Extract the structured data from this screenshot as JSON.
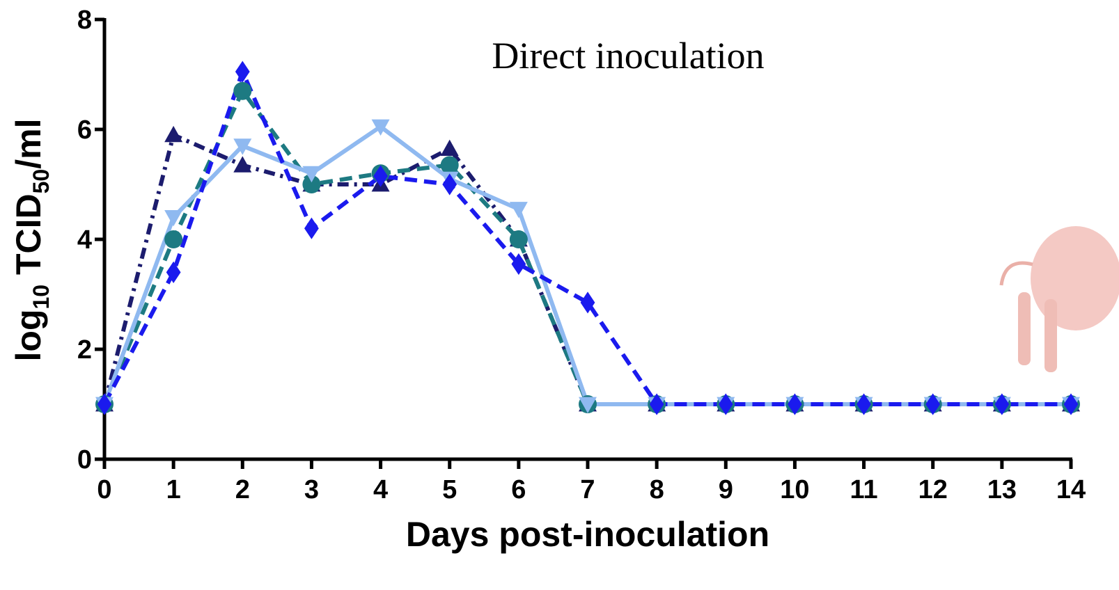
{
  "chart_data": {
    "type": "line",
    "title": "Direct inoculation",
    "x_label": "Days post-inoculation",
    "y_label": [
      "log",
      "10",
      " TCID",
      "50",
      "/ml"
    ],
    "x": [
      0,
      1,
      2,
      3,
      4,
      5,
      6,
      7,
      8,
      9,
      10,
      11,
      12,
      13,
      14
    ],
    "xlim": [
      0,
      14
    ],
    "xticks": [
      0,
      1,
      2,
      3,
      4,
      5,
      6,
      7,
      8,
      9,
      10,
      11,
      12,
      13,
      14
    ],
    "ylim": [
      0,
      8
    ],
    "yticks": [
      0,
      2,
      4,
      6,
      8
    ],
    "series": [
      {
        "color": "#1c1c6e",
        "marker": "triangle",
        "dash": "dashdot",
        "values": [
          1,
          5.9,
          5.35,
          5.0,
          5.0,
          5.65,
          4.0,
          1,
          1,
          1,
          1,
          1,
          1,
          1,
          1
        ]
      },
      {
        "color": "#1d7a82",
        "marker": "circle",
        "dash": "dashed",
        "values": [
          1,
          4.0,
          6.7,
          5.0,
          5.2,
          5.35,
          4.0,
          1,
          1,
          1,
          1,
          1,
          1,
          1,
          1
        ]
      },
      {
        "color": "#8fb9f0",
        "marker": "triangle-down",
        "dash": "solid",
        "values": [
          1,
          4.4,
          5.7,
          5.2,
          6.05,
          5.1,
          4.55,
          1,
          1,
          1,
          1,
          1,
          1,
          1,
          1
        ]
      },
      {
        "color": "#1a1aee",
        "marker": "diamond",
        "dash": "dashed",
        "values": [
          1,
          3.4,
          7.05,
          4.2,
          5.15,
          5.0,
          3.55,
          2.85,
          1,
          1,
          1,
          1,
          1,
          1,
          1
        ]
      }
    ]
  }
}
